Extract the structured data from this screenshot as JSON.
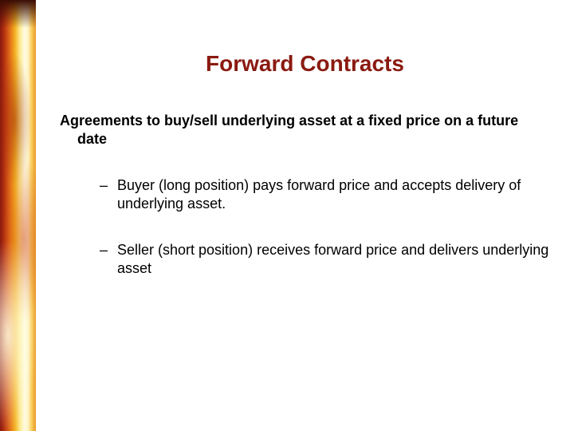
{
  "slide": {
    "title": "Forward Contracts",
    "intro": "Agreements to buy/sell underlying asset at a fixed price on a future date",
    "bullets": [
      "Buyer (long position) pays forward price and accepts delivery of underlying asset.",
      "Seller (short position) receives forward price and delivers underlying asset"
    ]
  },
  "style": {
    "title_color": "#8a1a10",
    "text_color": "#000000",
    "background_color": "#ffffff",
    "title_fontsize": 28,
    "body_fontsize": 18,
    "sidebar_gradient": [
      "#8a1a0f",
      "#a52810",
      "#c94815",
      "#e67a1a",
      "#f4b223",
      "#fce98e",
      "#fffbe0",
      "#fef4c8",
      "#f8cd5a",
      "#eb9a2a"
    ]
  }
}
